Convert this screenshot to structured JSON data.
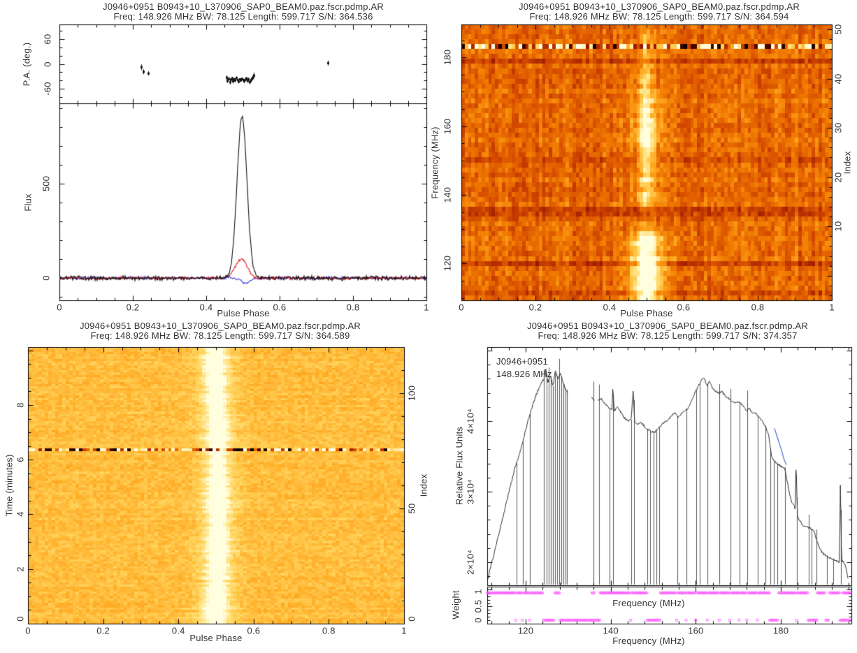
{
  "source_name": "J0946+0951 pdmp diagnostic plots",
  "chart_data": [
    {
      "id": "pulse-profile-polarization",
      "type": "line",
      "title": "J0946+0951 B0943+10_L370906_SAP0_BEAM0.paz.fscr.pdmp.AR",
      "subtitle": "Freq: 148.926 MHz BW: 78.125 Length: 599.717 S/N: 364.536",
      "xlabel": "Pulse Phase",
      "xlim": [
        0,
        1
      ],
      "xticks": [
        0,
        0.2,
        0.4,
        0.6,
        0.8,
        1
      ],
      "xtick_labels": [
        "0",
        "0.2",
        "0.4",
        "0.6",
        "0.8",
        "1"
      ],
      "pa_panel": {
        "ylabel": "P.A. (deg.)",
        "ylim": [
          -95,
          95
        ],
        "yticks": [
          -60,
          0,
          60
        ],
        "ytick_labels": [
          "-60",
          "0",
          "60"
        ],
        "points_phase_pa_err": [
          [
            0.222,
            -8,
            7
          ],
          [
            0.229,
            -19,
            6
          ],
          [
            0.241,
            -23,
            5
          ],
          [
            0.455,
            -33,
            5
          ],
          [
            0.458,
            -41,
            5
          ],
          [
            0.461,
            -36,
            4
          ],
          [
            0.464,
            -44,
            6
          ],
          [
            0.467,
            -38,
            4
          ],
          [
            0.47,
            -35,
            4
          ],
          [
            0.473,
            -42,
            5
          ],
          [
            0.476,
            -37,
            3
          ],
          [
            0.479,
            -40,
            4
          ],
          [
            0.482,
            -34,
            4
          ],
          [
            0.485,
            -39,
            3
          ],
          [
            0.488,
            -43,
            4
          ],
          [
            0.491,
            -37,
            3
          ],
          [
            0.494,
            -40,
            3
          ],
          [
            0.497,
            -36,
            3
          ],
          [
            0.5,
            -39,
            3
          ],
          [
            0.503,
            -42,
            4
          ],
          [
            0.506,
            -38,
            3
          ],
          [
            0.509,
            -35,
            4
          ],
          [
            0.512,
            -41,
            4
          ],
          [
            0.515,
            -37,
            4
          ],
          [
            0.518,
            -44,
            5
          ],
          [
            0.521,
            -39,
            5
          ],
          [
            0.524,
            -36,
            5
          ],
          [
            0.527,
            -31,
            6
          ],
          [
            0.53,
            -28,
            7
          ],
          [
            0.732,
            2,
            6
          ]
        ]
      },
      "flux_panel": {
        "ylabel": "Flux",
        "ylim": [
          -118,
          926
        ],
        "yticks": [
          0,
          500
        ],
        "ytick_labels": [
          "0",
          "500"
        ],
        "series": [
          {
            "name": "total-intensity",
            "color": "#111111",
            "peak": 855,
            "center": 0.4975,
            "sigma": 0.0135,
            "noise": 14
          },
          {
            "name": "linear-polarization",
            "color": "#e02020",
            "peak": 102,
            "center": 0.4955,
            "sigma": 0.016,
            "noise": 10
          },
          {
            "name": "circular-polarization",
            "color": "#4343e0",
            "peak": -30,
            "center": 0.507,
            "sigma": 0.012,
            "noise": 10
          }
        ]
      }
    },
    {
      "id": "frequency-vs-phase",
      "type": "heatmap",
      "title": "J0946+0951 B0943+10_L370906_SAP0_BEAM0.paz.fscr.pdmp.AR",
      "subtitle": "Freq: 148.926 MHz BW: 78.125 Length: 599.717 S/N: 364.594",
      "xlabel": "Pulse Phase",
      "xlim": [
        0,
        1
      ],
      "xticks": [
        0,
        0.2,
        0.4,
        0.6,
        0.8,
        1
      ],
      "xtick_labels": [
        "0",
        "0.2",
        "0.4",
        "0.6",
        "0.8",
        "1"
      ],
      "ylabel": "Frequency (MHz)",
      "ylim": [
        109.3,
        189.6
      ],
      "yticks": [
        120,
        140,
        160,
        180
      ],
      "ytick_labels": [
        "120",
        "140",
        "160",
        "180"
      ],
      "y2label": "Index",
      "y2lim": [
        -5,
        51
      ],
      "y2ticks": [
        10,
        20,
        30,
        40,
        50
      ],
      "y2tick_labels": [
        "10",
        "20",
        "30",
        "40",
        "50"
      ],
      "colormap": "heat",
      "n_channels": 56,
      "n_phase_bins": 110,
      "background_value": 0.54,
      "noise_amplitude": 0.17,
      "pulse_stripe": {
        "center": 0.5,
        "sigma_top": 0.011,
        "sigma_bottom": 0.021,
        "amp_profile": [
          [
            110,
            0.52
          ],
          [
            117,
            0.52
          ],
          [
            122,
            0.5
          ],
          [
            127,
            0.45
          ],
          [
            129,
            0.3
          ],
          [
            130.5,
            0.05
          ],
          [
            136.5,
            0.05
          ],
          [
            138,
            0.28
          ],
          [
            143,
            0.25
          ],
          [
            148,
            0.21
          ],
          [
            151,
            0.22
          ],
          [
            153,
            0.34
          ],
          [
            155,
            0.4
          ],
          [
            157,
            0.36
          ],
          [
            160,
            0.32
          ],
          [
            163,
            0.32
          ],
          [
            166,
            0.28
          ],
          [
            169,
            0.26
          ],
          [
            172,
            0.22
          ],
          [
            176,
            0.2
          ],
          [
            180,
            0.17
          ],
          [
            184,
            0.14
          ],
          [
            188,
            0.1
          ],
          [
            189.6,
            0.08
          ]
        ]
      },
      "rfi_row_freq": 183.2,
      "dark_rows_freq": [
        111.6,
        120.7,
        133.9,
        135.3,
        136.5,
        150.8,
        178.6
      ]
    },
    {
      "id": "time-vs-phase",
      "type": "heatmap",
      "title": "J0946+0951 B0943+10_L370906_SAP0_BEAM0.paz.fscr.pdmp.AR",
      "subtitle": "Freq: 148.926 MHz BW: 78.125 Length: 599.717 S/N: 364.589",
      "xlabel": "Pulse Phase",
      "xlim": [
        0,
        1
      ],
      "xticks": [
        0,
        0.2,
        0.4,
        0.6,
        0.8,
        1
      ],
      "xtick_labels": [
        "0",
        "0.2",
        "0.4",
        "0.6",
        "0.8",
        "1"
      ],
      "ylabel": "Time (minutes)",
      "ylim": [
        0,
        10.12
      ],
      "yticks": [
        0,
        2,
        4,
        6,
        8
      ],
      "ytick_labels": [
        "0",
        "2",
        "4",
        "6",
        "8"
      ],
      "y2label": "Index",
      "y2lim": [
        0,
        120
      ],
      "y2ticks": [
        0,
        50,
        100
      ],
      "y2tick_labels": [
        "0",
        "50",
        "100"
      ],
      "colormap": "heat",
      "n_subints": 120,
      "n_phase_bins": 110,
      "background_value": 0.76,
      "noise_amplitude": 0.09,
      "pulse_stripe": {
        "center": 0.5,
        "sigma": 0.012,
        "amp_min": 0.3,
        "amp_max": 0.55,
        "wiggle": 0.005
      },
      "rfi_row_time": 6.4
    },
    {
      "id": "bandpass-spectrum",
      "type": "line",
      "title": "J0946+0951 B0943+10_L370906_SAP0_BEAM0.paz.fscr.pdmp.AR",
      "subtitle": "Freq: 148.926 MHz BW: 78.125 Length: 599.717 S/N: 374.357",
      "annotation_line1": "J0946+0951",
      "annotation_line2": "148.926 MHz",
      "xlabel": "Frequency (MHz)",
      "xlim": [
        110.96,
        196.6
      ],
      "xticks": [
        120,
        140,
        160,
        180
      ],
      "xtick_labels": [
        "120",
        "140",
        "160",
        "180"
      ],
      "ylabel": "Relative Flux Units",
      "ylim": [
        16730,
        50500
      ],
      "yticks": [
        20000,
        30000,
        40000
      ],
      "ytick_labels": [
        "2×10⁴",
        "3×10⁴",
        "4×10⁴"
      ],
      "line_color": "#2a2a2a",
      "blue_segment_color": "#4a66c8",
      "spectrum": [
        [
          111.2,
          17600
        ],
        [
          111.6,
          19000
        ],
        [
          112.5,
          21000
        ],
        [
          113.5,
          23500
        ],
        [
          114.5,
          26000
        ],
        [
          115.5,
          28500
        ],
        [
          116.5,
          31000
        ],
        [
          117.5,
          33500
        ],
        [
          118.5,
          35200
        ],
        [
          119.5,
          37500
        ],
        [
          120.5,
          40000
        ],
        [
          121.5,
          42000
        ],
        [
          122.5,
          43800
        ],
        [
          123.5,
          45200
        ],
        [
          124.3,
          46000
        ],
        [
          124.7,
          47500
        ],
        [
          125.2,
          45500
        ],
        [
          125.8,
          46500
        ],
        [
          126.4,
          45000
        ],
        [
          127.0,
          47200
        ],
        [
          127.6,
          46000
        ],
        [
          128.2,
          46800
        ],
        [
          128.8,
          45500
        ],
        [
          129.4,
          44500
        ],
        [
          129.9,
          44000
        ],
        [
          135.6,
          43300
        ],
        [
          136.1,
          43000
        ],
        [
          137.1,
          43000
        ],
        [
          137.8,
          43200
        ],
        [
          138.6,
          42500
        ],
        [
          139.4,
          42000
        ],
        [
          140.3,
          41500
        ],
        [
          140.5,
          45000
        ],
        [
          140.8,
          41500
        ],
        [
          141.6,
          42000
        ],
        [
          142.4,
          41200
        ],
        [
          143.2,
          40500
        ],
        [
          144.0,
          40000
        ],
        [
          144.8,
          40200
        ],
        [
          145.3,
          44500
        ],
        [
          145.6,
          40000
        ],
        [
          146.4,
          39500
        ],
        [
          147.2,
          39800
        ],
        [
          148.0,
          39200
        ],
        [
          148.8,
          38800
        ],
        [
          149.6,
          38500
        ],
        [
          150.4,
          38500
        ],
        [
          151.2,
          39000
        ],
        [
          152.0,
          39500
        ],
        [
          153.0,
          40000
        ],
        [
          154.0,
          40500
        ],
        [
          155.0,
          41200
        ],
        [
          155.8,
          40500
        ],
        [
          156.6,
          41000
        ],
        [
          157.4,
          41500
        ],
        [
          158.2,
          41800
        ],
        [
          159.0,
          42800
        ],
        [
          159.8,
          44000
        ],
        [
          160.6,
          45000
        ],
        [
          161.4,
          45800
        ],
        [
          162.0,
          46200
        ],
        [
          162.6,
          45000
        ],
        [
          163.2,
          45800
        ],
        [
          163.8,
          44800
        ],
        [
          164.6,
          44200
        ],
        [
          165.4,
          44000
        ],
        [
          166.2,
          44200
        ],
        [
          167.0,
          43500
        ],
        [
          167.8,
          43200
        ],
        [
          168.6,
          42800
        ],
        [
          169.4,
          42500
        ],
        [
          170.2,
          42800
        ],
        [
          171.0,
          42200
        ],
        [
          171.8,
          41500
        ],
        [
          172.6,
          41800
        ],
        [
          173.4,
          41200
        ],
        [
          174.2,
          41000
        ],
        [
          175.0,
          40500
        ],
        [
          175.8,
          39800
        ],
        [
          176.5,
          39200
        ],
        [
          177.2,
          37800
        ],
        [
          177.9,
          34800
        ],
        [
          178.7,
          34200
        ],
        [
          179.5,
          33800
        ],
        [
          180.3,
          33500
        ],
        [
          181.0,
          33200
        ],
        [
          181.7,
          30800
        ],
        [
          182.4,
          28800
        ],
        [
          183.1,
          28000
        ],
        [
          183.4,
          27500
        ],
        [
          183.6,
          34500
        ],
        [
          183.9,
          26500
        ],
        [
          184.5,
          25800
        ],
        [
          185.3,
          25200
        ],
        [
          186.1,
          25000
        ],
        [
          186.9,
          24800
        ],
        [
          187.7,
          24500
        ],
        [
          188.4,
          23200
        ],
        [
          189.2,
          21800
        ],
        [
          190.0,
          21200
        ],
        [
          191.0,
          20800
        ],
        [
          192.0,
          20500
        ],
        [
          193.0,
          20200
        ],
        [
          193.8,
          20000
        ],
        [
          194.0,
          31000
        ],
        [
          194.3,
          20300
        ],
        [
          195.0,
          19800
        ],
        [
          195.6,
          18500
        ],
        [
          195.9,
          17200
        ]
      ],
      "gaps": [
        [
          130.0,
          135.5
        ],
        [
          136.2,
          137.0
        ]
      ],
      "flagged_channels": [
        117.8,
        119.3,
        121.0,
        124.3,
        124.9,
        125.4,
        125.9,
        126.4,
        126.9,
        127.4,
        127.9,
        128.4,
        128.9,
        129.3,
        129.7,
        135.9,
        137.2,
        139.8,
        140.6,
        144.8,
        145.4,
        148.6,
        149.3,
        150.1,
        150.8,
        151.4,
        155.6,
        157.8,
        160.1,
        161.0,
        162.8,
        165.6,
        168.1,
        170.3,
        172.1,
        174.6,
        176.3,
        177.6,
        178.4,
        179.2,
        181.0,
        183.8,
        186.6,
        187.2,
        188.3,
        190.9,
        192.3,
        194.1
      ],
      "blue_segment": [
        [
          178.5,
          39000
        ],
        [
          179.3,
          37500
        ],
        [
          180.1,
          36000
        ],
        [
          180.8,
          34500
        ],
        [
          181.3,
          33800
        ]
      ],
      "weight_panel": {
        "ylabel": "Weight",
        "ylim": [
          0,
          1.08
        ],
        "yticks": [
          0,
          0.5,
          1
        ],
        "ytick_labels": [
          "0",
          "0.5",
          "1"
        ],
        "marker_color": "#ff50ff",
        "weight_one_ranges": [
          [
            111.0,
            117.6
          ],
          [
            118.0,
            119.1
          ],
          [
            119.5,
            120.8
          ],
          [
            121.2,
            124.1
          ],
          [
            126.9,
            128.0
          ],
          [
            135.6,
            136.2
          ],
          [
            137.5,
            144.6
          ],
          [
            145.0,
            148.5
          ],
          [
            151.7,
            155.4
          ],
          [
            155.8,
            157.6
          ],
          [
            158.0,
            159.9
          ],
          [
            160.3,
            162.6
          ],
          [
            163.0,
            165.4
          ],
          [
            165.8,
            167.9
          ],
          [
            168.3,
            170.1
          ],
          [
            170.5,
            171.9
          ],
          [
            172.3,
            174.4
          ],
          [
            174.8,
            177.3
          ],
          [
            179.5,
            183.6
          ],
          [
            184.0,
            186.3
          ],
          [
            188.6,
            190.5
          ],
          [
            191.5,
            193.8
          ],
          [
            194.6,
            196.4
          ]
        ],
        "weight_zero_ranges": [
          [
            117.7,
            117.9
          ],
          [
            119.2,
            119.4
          ],
          [
            120.9,
            121.1
          ],
          [
            124.2,
            126.8
          ],
          [
            128.1,
            129.7
          ],
          [
            129.9,
            137.4
          ],
          [
            144.7,
            144.9
          ],
          [
            148.6,
            151.6
          ],
          [
            155.5,
            155.7
          ],
          [
            157.7,
            157.9
          ],
          [
            160.0,
            160.2
          ],
          [
            162.7,
            162.9
          ],
          [
            165.5,
            165.7
          ],
          [
            168.0,
            168.2
          ],
          [
            170.2,
            170.4
          ],
          [
            172.0,
            172.2
          ],
          [
            174.5,
            174.7
          ],
          [
            177.4,
            179.4
          ],
          [
            183.7,
            183.9
          ],
          [
            186.4,
            188.5
          ],
          [
            190.6,
            191.4
          ],
          [
            193.9,
            196.4
          ]
        ]
      }
    }
  ]
}
